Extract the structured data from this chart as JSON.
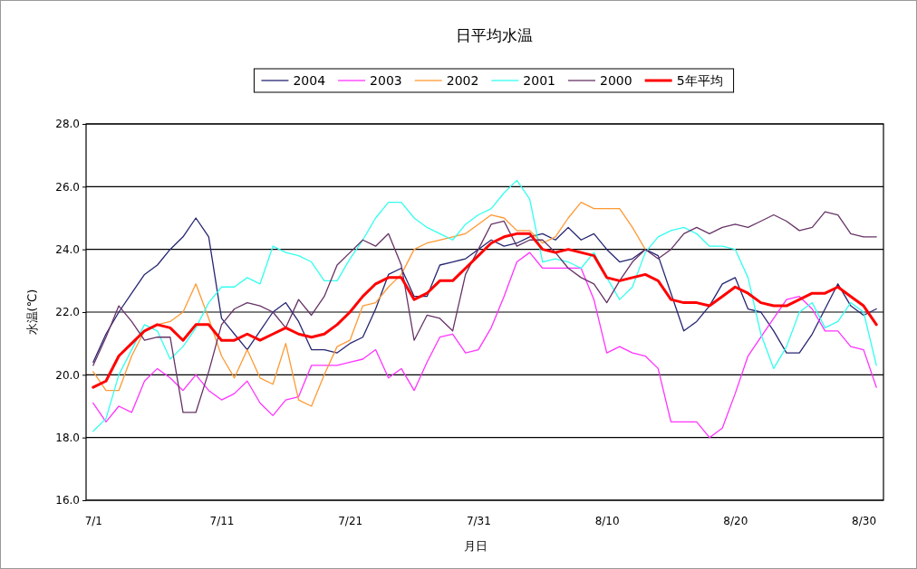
{
  "chart_data": {
    "type": "line",
    "title": "日平均水温",
    "xlabel": "月日",
    "ylabel": "水温(℃)",
    "categories": [
      "7/1",
      null,
      null,
      null,
      null,
      null,
      null,
      null,
      null,
      null,
      "7/11",
      null,
      null,
      null,
      null,
      null,
      null,
      null,
      null,
      null,
      "7/21",
      null,
      null,
      null,
      null,
      null,
      null,
      null,
      null,
      null,
      "7/31",
      null,
      null,
      null,
      null,
      null,
      null,
      null,
      null,
      null,
      "8/10",
      null,
      null,
      null,
      null,
      null,
      null,
      null,
      null,
      null,
      "8/20",
      null,
      null,
      null,
      null,
      null,
      null,
      null,
      null,
      null,
      "8/30",
      null
    ],
    "series": [
      {
        "name": "2004",
        "color": "#262673",
        "values": [
          20.4,
          21.3,
          22.0,
          22.6,
          23.2,
          23.5,
          24.0,
          24.4,
          25.0,
          24.4,
          21.8,
          21.3,
          20.8,
          21.4,
          22.0,
          22.3,
          21.7,
          20.8,
          20.8,
          20.7,
          21.0,
          21.2,
          22.1,
          23.2,
          23.4,
          22.5,
          22.5,
          23.5,
          23.6,
          23.7,
          24.0,
          24.3,
          24.1,
          24.2,
          24.4,
          24.5,
          24.3,
          24.7,
          24.3,
          24.5,
          24.0,
          23.6,
          23.7,
          24.0,
          23.8,
          22.6,
          21.4,
          21.7,
          22.2,
          22.9,
          23.1,
          22.1,
          22.0,
          21.4,
          20.7,
          20.7,
          21.3,
          22.1,
          22.9,
          22.2,
          21.9,
          22.1
        ]
      },
      {
        "name": "2003",
        "color": "#ff33ff",
        "values": [
          19.1,
          18.5,
          19.0,
          18.8,
          19.8,
          20.2,
          19.9,
          19.5,
          20.0,
          19.5,
          19.2,
          19.4,
          19.8,
          19.1,
          18.7,
          19.2,
          19.3,
          20.3,
          20.3,
          20.3,
          20.4,
          20.5,
          20.8,
          19.9,
          20.2,
          19.5,
          20.4,
          21.2,
          21.3,
          20.7,
          20.8,
          21.5,
          22.5,
          23.6,
          23.9,
          23.4,
          23.4,
          23.4,
          23.4,
          22.4,
          20.7,
          20.9,
          20.7,
          20.6,
          20.2,
          18.5,
          18.5,
          18.5,
          18.0,
          18.3,
          19.4,
          20.6,
          21.2,
          21.8,
          22.4,
          22.5,
          22.1,
          21.4,
          21.4,
          20.9,
          20.8,
          19.6
        ]
      },
      {
        "name": "2002",
        "color": "#ff9933",
        "values": [
          20.1,
          19.5,
          19.5,
          20.6,
          21.4,
          21.6,
          21.7,
          22.0,
          22.9,
          21.8,
          20.6,
          19.9,
          20.8,
          19.9,
          19.7,
          21.0,
          19.2,
          19.0,
          20.0,
          20.9,
          21.1,
          22.2,
          22.3,
          22.8,
          23.2,
          24.0,
          24.2,
          24.3,
          24.4,
          24.5,
          24.8,
          25.1,
          25.0,
          24.6,
          24.6,
          24.2,
          24.4,
          25.0,
          25.5,
          25.3,
          25.3,
          25.3,
          24.7,
          24.0,
          null,
          null,
          null,
          null,
          null,
          null,
          null,
          null,
          null,
          null,
          null,
          null,
          null,
          null,
          null,
          null,
          null,
          null
        ]
      },
      {
        "name": "2001",
        "color": "#33ffee",
        "values": [
          18.2,
          18.6,
          20.0,
          20.8,
          21.6,
          21.4,
          20.5,
          20.9,
          21.5,
          22.3,
          22.8,
          22.8,
          23.1,
          22.9,
          24.1,
          23.9,
          23.8,
          23.6,
          23.0,
          23.0,
          23.7,
          24.3,
          25.0,
          25.5,
          25.5,
          25.0,
          24.7,
          24.5,
          24.3,
          24.8,
          25.1,
          25.3,
          25.8,
          26.2,
          25.6,
          23.6,
          23.7,
          23.6,
          23.4,
          23.9,
          23.1,
          22.4,
          22.8,
          23.9,
          24.4,
          24.6,
          24.7,
          24.5,
          24.1,
          24.1,
          24.0,
          23.1,
          21.3,
          20.2,
          20.9,
          22.0,
          22.3,
          21.5,
          21.7,
          22.3,
          22.0,
          20.3
        ]
      },
      {
        "name": "2000",
        "color": "#663366",
        "values": [
          20.3,
          21.2,
          22.2,
          21.7,
          21.1,
          21.2,
          21.2,
          18.8,
          18.8,
          20.1,
          21.6,
          22.1,
          22.3,
          22.2,
          22.0,
          21.5,
          22.4,
          21.9,
          22.5,
          23.5,
          23.9,
          24.3,
          24.1,
          24.5,
          23.5,
          21.1,
          21.9,
          21.8,
          21.4,
          23.2,
          24.0,
          24.8,
          24.9,
          24.1,
          24.3,
          24.3,
          23.9,
          23.4,
          23.1,
          22.9,
          22.3,
          23.0,
          23.6,
          24.0,
          23.7,
          24.0,
          24.5,
          24.7,
          24.5,
          24.7,
          24.8,
          24.7,
          24.9,
          25.1,
          24.9,
          24.6,
          24.7,
          25.2,
          25.1,
          24.5,
          24.4,
          24.4
        ]
      },
      {
        "name": "5年平均",
        "color": "#ff0000",
        "values": [
          19.6,
          19.8,
          20.6,
          21.0,
          21.4,
          21.6,
          21.5,
          21.1,
          21.6,
          21.6,
          21.1,
          21.1,
          21.3,
          21.1,
          21.3,
          21.5,
          21.3,
          21.2,
          21.3,
          21.6,
          22.0,
          22.5,
          22.9,
          23.1,
          23.1,
          22.4,
          22.6,
          23.0,
          23.0,
          23.4,
          23.8,
          24.2,
          24.4,
          24.5,
          24.5,
          24.0,
          23.9,
          24.0,
          23.9,
          23.8,
          23.1,
          23.0,
          23.1,
          23.2,
          23.0,
          22.4,
          22.3,
          22.3,
          22.2,
          22.5,
          22.8,
          22.6,
          22.3,
          22.2,
          22.2,
          22.4,
          22.6,
          22.6,
          22.8,
          22.5,
          22.2,
          21.6
        ]
      }
    ],
    "ylim": [
      16,
      28
    ],
    "yticks": [
      {
        "value": 16,
        "label": "16.0"
      },
      {
        "value": 18,
        "label": "18.0"
      },
      {
        "value": 20,
        "label": "20.0"
      },
      {
        "value": 22,
        "label": "22.0"
      },
      {
        "value": 24,
        "label": "24.0"
      },
      {
        "value": 26,
        "label": "26.0"
      },
      {
        "value": 28,
        "label": "28.0"
      }
    ],
    "grid": "y",
    "legend": "top"
  }
}
